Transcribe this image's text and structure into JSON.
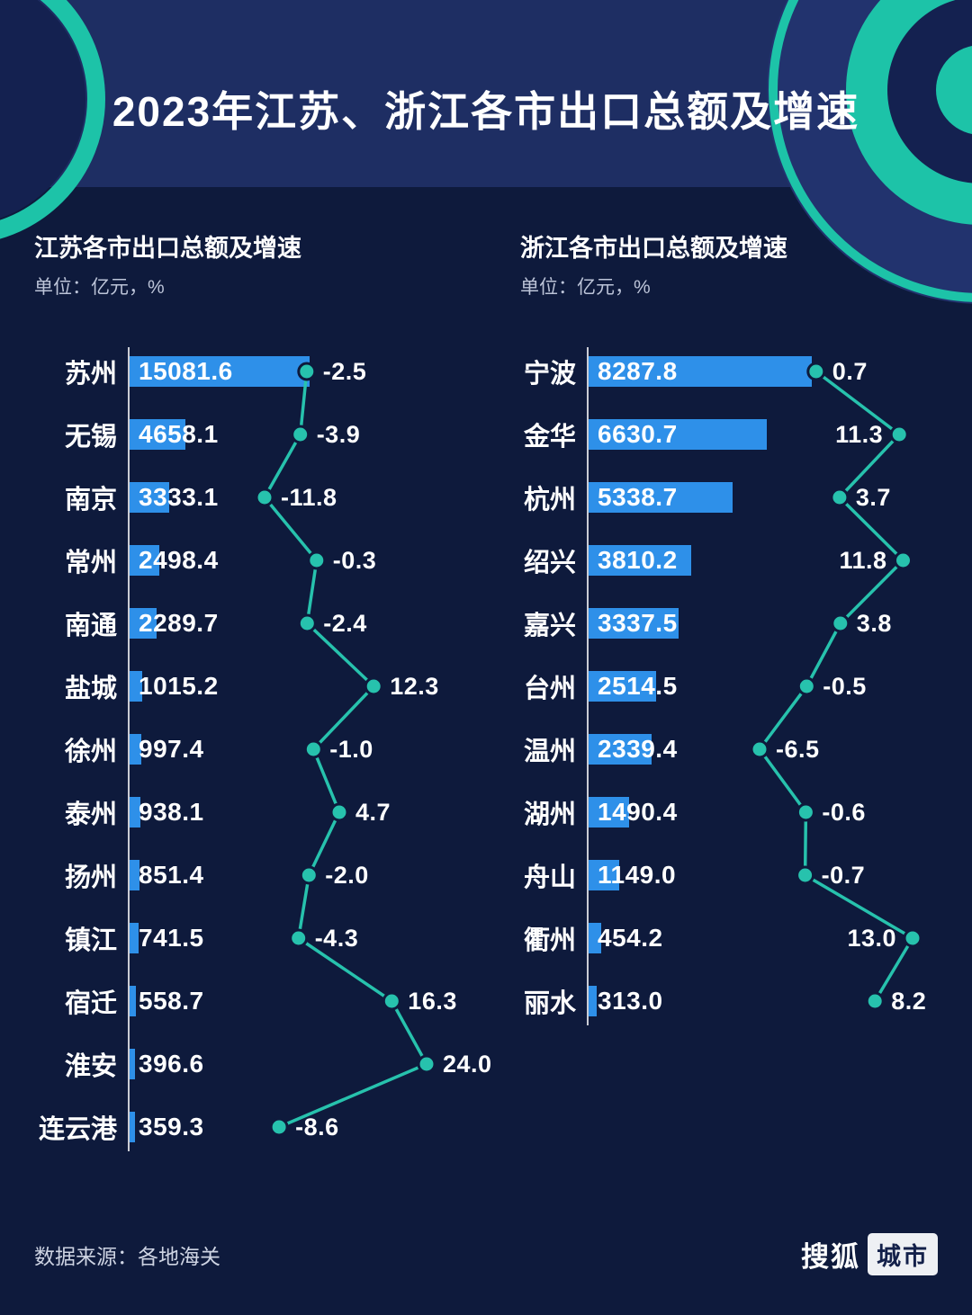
{
  "title": "2023年江苏、浙江各市出口总额及增速",
  "footer": {
    "source": "数据来源：各地海关",
    "logo_sohu": "搜狐",
    "logo_city": "城市"
  },
  "colors": {
    "background": "#0e1a3c",
    "banner": "#1e2e63",
    "bar": "#2e90e9",
    "line": "#27c2ad",
    "teal": "#1dc3a8",
    "muted": "#bcc4d8"
  },
  "chart_data": [
    {
      "type": "bar+line",
      "title": "江苏各市出口总额及增速",
      "unit": "单位：亿元，%",
      "categories": [
        "苏州",
        "无锡",
        "南京",
        "常州",
        "南通",
        "盐城",
        "徐州",
        "泰州",
        "扬州",
        "镇江",
        "宿迁",
        "淮安",
        "连云港"
      ],
      "series": [
        {
          "name": "出口总额",
          "type": "bar",
          "unit": "亿元",
          "values": [
            15081.6,
            4658.1,
            3333.1,
            2498.4,
            2289.7,
            1015.2,
            997.4,
            938.1,
            851.4,
            741.5,
            558.7,
            396.6,
            359.3
          ]
        },
        {
          "name": "增速",
          "type": "line",
          "unit": "%",
          "values": [
            -2.5,
            -3.9,
            -11.8,
            -0.3,
            -2.4,
            12.3,
            -1.0,
            4.7,
            -2.0,
            -4.3,
            16.3,
            24.0,
            -8.6
          ]
        }
      ],
      "bar_axis_min": 0,
      "growth_range": [
        -11.8,
        24.0
      ],
      "legend": "none",
      "grid": "off"
    },
    {
      "type": "bar+line",
      "title": "浙江各市出口总额及增速",
      "unit": "单位：亿元，%",
      "categories": [
        "宁波",
        "金华",
        "杭州",
        "绍兴",
        "嘉兴",
        "台州",
        "温州",
        "湖州",
        "舟山",
        "衢州",
        "丽水"
      ],
      "series": [
        {
          "name": "出口总额",
          "type": "bar",
          "unit": "亿元",
          "values": [
            8287.8,
            6630.7,
            5338.7,
            3810.2,
            3337.5,
            2514.5,
            2339.4,
            1490.4,
            1149.0,
            454.2,
            313.0
          ]
        },
        {
          "name": "增速",
          "type": "line",
          "unit": "%",
          "values": [
            0.7,
            11.3,
            3.7,
            11.8,
            3.8,
            -0.5,
            -6.5,
            -0.6,
            -0.7,
            13.0,
            8.2
          ]
        }
      ],
      "bar_axis_min": 0,
      "growth_range": [
        -6.5,
        13.0
      ],
      "legend": "none",
      "grid": "off"
    }
  ]
}
